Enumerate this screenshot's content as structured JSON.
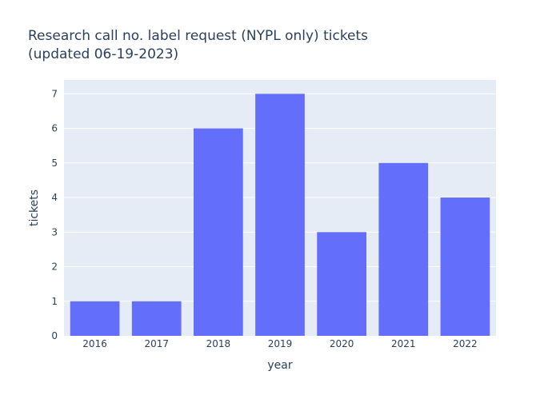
{
  "chart_data": {
    "type": "bar",
    "title_line1": "Research call no. label request (NYPL only) tickets",
    "title_line2": "(updated 06-19-2023)",
    "xlabel": "year",
    "ylabel": "tickets",
    "categories": [
      "2016",
      "2017",
      "2018",
      "2019",
      "2020",
      "2021",
      "2022"
    ],
    "values": [
      1,
      1,
      6,
      7,
      3,
      5,
      4
    ],
    "ylim": [
      0,
      7.4
    ],
    "yticks": [
      "0",
      "1",
      "2",
      "3",
      "4",
      "5",
      "6",
      "7"
    ],
    "grid": true,
    "legend": "none",
    "colors": {
      "bar": "#636efa",
      "plot_background": "#e5ecf6",
      "grid": "#ffffff",
      "text": "#2a3f5f"
    }
  }
}
